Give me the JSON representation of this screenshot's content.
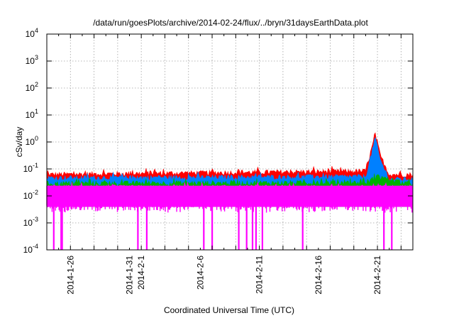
{
  "chart_data": {
    "type": "area",
    "title": "/data/run/goesPlots/archive/2014-02-24/flux/../bryn/31daysEarthData.plot",
    "xlabel": "Coordinated Universal Time (UTC)",
    "ylabel": "cSv/day",
    "log_y": true,
    "ylim": [
      0.0001,
      10000
    ],
    "xlim": [
      "2014-01-24",
      "2014-02-24"
    ],
    "y_ticks": [
      {
        "value": 0.0001,
        "base": "10",
        "exp": "-4"
      },
      {
        "value": 0.001,
        "base": "10",
        "exp": "-3"
      },
      {
        "value": 0.01,
        "base": "10",
        "exp": "-2"
      },
      {
        "value": 0.1,
        "base": "10",
        "exp": "-1"
      },
      {
        "value": 1,
        "base": "10",
        "exp": "0"
      },
      {
        "value": 10,
        "base": "10",
        "exp": "1"
      },
      {
        "value": 100,
        "base": "10",
        "exp": "2"
      },
      {
        "value": 1000,
        "base": "10",
        "exp": "3"
      },
      {
        "value": 10000,
        "base": "10",
        "exp": "4"
      }
    ],
    "x_ticks": [
      {
        "date": "2014-01-26",
        "label": "2014-1-26"
      },
      {
        "date": "2014-01-31",
        "label": "2014-1-31"
      },
      {
        "date": "2014-02-01",
        "label": "2014-2-1"
      },
      {
        "date": "2014-02-06",
        "label": "2014-2-6"
      },
      {
        "date": "2014-02-11",
        "label": "2014-2-11"
      },
      {
        "date": "2014-02-16",
        "label": "2014-2-16"
      },
      {
        "date": "2014-02-21",
        "label": "2014-2-21"
      }
    ],
    "grid": true,
    "legend": "none",
    "series": [
      {
        "color": "#ff0000",
        "baseline": 0.062,
        "dates": [
          "2014-01-24",
          "2014-02-07",
          "2014-02-20",
          "2014-02-20T16:00",
          "2014-02-20T19:00",
          "2014-02-21T06:00",
          "2014-02-22",
          "2014-02-24"
        ],
        "values": [
          0.06,
          0.07,
          0.08,
          1.0,
          2.2,
          0.3,
          0.06,
          0.06
        ]
      },
      {
        "color": "#0080ff",
        "baseline": 0.045,
        "dates": [
          "2014-01-24",
          "2014-02-20",
          "2014-02-20T16:00",
          "2014-02-20T19:00",
          "2014-02-21T06:00",
          "2014-02-22",
          "2014-02-24"
        ],
        "values": [
          0.045,
          0.05,
          0.7,
          1.5,
          0.2,
          0.04,
          0.04
        ]
      },
      {
        "color": "#00b000",
        "baseline": 0.028,
        "dates": [
          "2014-01-24",
          "2014-02-20",
          "2014-02-21",
          "2014-02-24"
        ],
        "values": [
          0.028,
          0.03,
          0.05,
          0.025
        ]
      },
      {
        "color": "#ff00ff",
        "baseline": 0.02,
        "floor": 0.004,
        "dates": [
          "2014-01-24",
          "2014-02-24"
        ],
        "values": [
          0.02,
          0.02
        ]
      }
    ],
    "dropouts": [
      "2014-01-24T14:00",
      "2014-01-25T05:00",
      "2014-01-25T07:00",
      "2014-01-31T17:00",
      "2014-02-01T11:00",
      "2014-02-06T07:00",
      "2014-02-07T00:00",
      "2014-02-09T06:00",
      "2014-02-09T22:00",
      "2014-02-10T10:00",
      "2014-02-10T17:00",
      "2014-02-11T06:00",
      "2014-02-14T16:00",
      "2014-02-21T13:00",
      "2014-02-22T05:00"
    ]
  }
}
